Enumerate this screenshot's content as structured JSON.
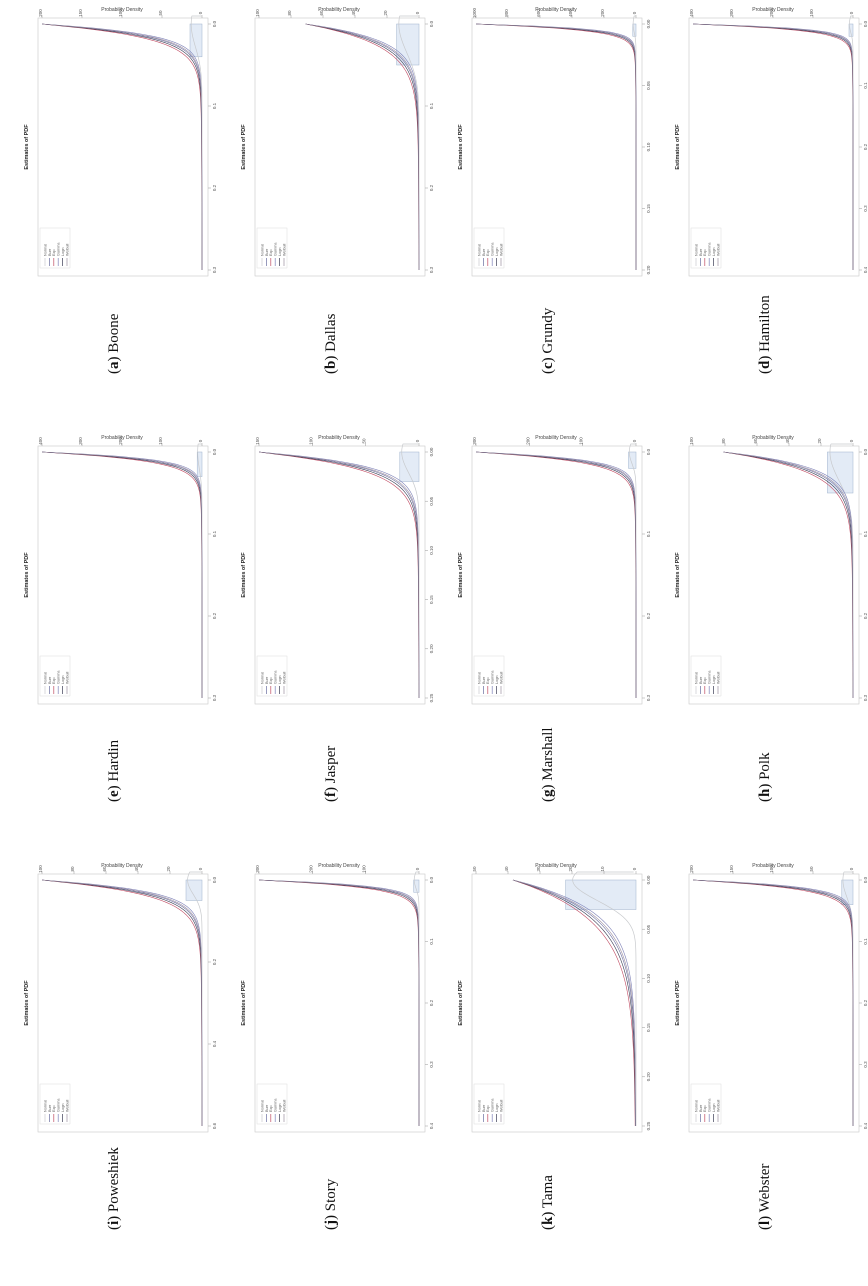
{
  "legend_labels": [
    "Normal",
    "Burr",
    "Exp",
    "Gamma",
    "Logn",
    "Weibull"
  ],
  "colors": {
    "histogram_fill": "#e3ebf6",
    "histogram_stroke": "#9fb2cc",
    "normal": "#c8cacd",
    "burr": "#6a6ea0",
    "exp": "#c04a62",
    "gamma": "#7f82b8",
    "logn": "#3a3d54",
    "weibull": "#9d8f9f"
  },
  "chart_data": [
    {
      "type": "histogram-density",
      "caption_letter": "(a)",
      "caption_name": "Boone",
      "title": "Estimates of PDF",
      "xlabel": "Lr",
      "ylabel": "Probability Density",
      "xlim": [
        0,
        0.3
      ],
      "x_ticks": [
        "0.0",
        "0.1",
        "0.2",
        "0.3"
      ],
      "ylim": [
        0,
        200
      ],
      "y_ticks": [
        "0",
        "50",
        "100",
        "150",
        "200"
      ],
      "hist_bar_width": 0.04,
      "hist_bar_height": 15,
      "curve_peak": 200,
      "decay": 0.014
    },
    {
      "type": "histogram-density",
      "caption_letter": "(b)",
      "caption_name": "Dallas",
      "title": "Estimates of PDF",
      "xlabel": "Lr",
      "ylabel": "Probability Density",
      "xlim": [
        0,
        0.3
      ],
      "x_ticks": [
        "0.0",
        "0.1",
        "0.2",
        "0.3"
      ],
      "ylim": [
        0,
        100
      ],
      "y_ticks": [
        "0",
        "20",
        "40",
        "60",
        "80",
        "100"
      ],
      "hist_bar_width": 0.05,
      "hist_bar_height": 14,
      "curve_peak": 70,
      "decay": 0.022
    },
    {
      "type": "histogram-density",
      "caption_letter": "(c)",
      "caption_name": "Grundy",
      "title": "Estimates of PDF",
      "xlabel": "Lr",
      "ylabel": "Probability Density",
      "xlim": [
        0,
        0.2
      ],
      "x_ticks": [
        "0.00",
        "0.05",
        "0.10",
        "0.15",
        "0.20"
      ],
      "ylim": [
        0,
        1000
      ],
      "y_ticks": [
        "0",
        "200",
        "400",
        "600",
        "800",
        "1000"
      ],
      "hist_bar_width": 0.01,
      "hist_bar_height": 20,
      "curve_peak": 1000,
      "decay": 0.004
    },
    {
      "type": "histogram-density",
      "caption_letter": "(d)",
      "caption_name": "Hamilton",
      "title": "Estimates of PDF",
      "xlabel": "Lr",
      "ylabel": "Probability Density",
      "xlim": [
        0,
        0.4
      ],
      "x_ticks": [
        "0.0",
        "0.1",
        "0.2",
        "0.3",
        "0.4"
      ],
      "ylim": [
        0,
        400
      ],
      "y_ticks": [
        "0",
        "100",
        "200",
        "300",
        "400"
      ],
      "hist_bar_width": 0.02,
      "hist_bar_height": 10,
      "curve_peak": 400,
      "decay": 0.008
    },
    {
      "type": "histogram-density",
      "caption_letter": "(e)",
      "caption_name": "Hardin",
      "title": "Estimates of PDF",
      "xlabel": "Lr",
      "ylabel": "Probability Density",
      "xlim": [
        0,
        0.3
      ],
      "x_ticks": [
        "0.0",
        "0.1",
        "0.2",
        "0.3"
      ],
      "ylim": [
        0,
        400
      ],
      "y_ticks": [
        "0",
        "100",
        "200",
        "300",
        "400"
      ],
      "hist_bar_width": 0.03,
      "hist_bar_height": 12,
      "curve_peak": 400,
      "decay": 0.009
    },
    {
      "type": "histogram-density",
      "caption_letter": "(f)",
      "caption_name": "Jasper",
      "title": "Estimates of PDF",
      "xlabel": "Lr",
      "ylabel": "Probability Density",
      "xlim": [
        0,
        0.25
      ],
      "x_ticks": [
        "0.00",
        "0.05",
        "0.10",
        "0.15",
        "0.20",
        "0.25"
      ],
      "ylim": [
        0,
        150
      ],
      "y_ticks": [
        "0",
        "50",
        "100",
        "150"
      ],
      "hist_bar_width": 0.03,
      "hist_bar_height": 18,
      "curve_peak": 150,
      "decay": 0.015
    },
    {
      "type": "histogram-density",
      "caption_letter": "(g)",
      "caption_name": "Marshall",
      "title": "Estimates of PDF",
      "xlabel": "Lr",
      "ylabel": "Probability Density",
      "xlim": [
        0,
        0.3
      ],
      "x_ticks": [
        "0.0",
        "0.1",
        "0.2",
        "0.3"
      ],
      "ylim": [
        0,
        300
      ],
      "y_ticks": [
        "0",
        "100",
        "200",
        "300"
      ],
      "hist_bar_width": 0.02,
      "hist_bar_height": 14,
      "curve_peak": 300,
      "decay": 0.01
    },
    {
      "type": "histogram-density",
      "caption_letter": "(h)",
      "caption_name": "Polk",
      "title": "Estimates of PDF",
      "xlabel": "Lr",
      "ylabel": "Probability Density",
      "xlim": [
        0,
        0.3
      ],
      "x_ticks": [
        "0.0",
        "0.1",
        "0.2",
        "0.3"
      ],
      "ylim": [
        0,
        100
      ],
      "y_ticks": [
        "0",
        "20",
        "40",
        "60",
        "80",
        "100"
      ],
      "hist_bar_width": 0.05,
      "hist_bar_height": 16,
      "curve_peak": 80,
      "decay": 0.02
    },
    {
      "type": "histogram-density",
      "caption_letter": "(i)",
      "caption_name": "Poweshiek",
      "title": "Estimates of PDF",
      "xlabel": "Lr",
      "ylabel": "Probability Density",
      "xlim": [
        0,
        0.6
      ],
      "x_ticks": [
        "0.0",
        "0.2",
        "0.4",
        "0.6"
      ],
      "ylim": [
        0,
        100
      ],
      "y_ticks": [
        "0",
        "20",
        "40",
        "60",
        "80",
        "100"
      ],
      "hist_bar_width": 0.05,
      "hist_bar_height": 10,
      "curve_peak": 100,
      "decay": 0.03
    },
    {
      "type": "histogram-density",
      "caption_letter": "(j)",
      "caption_name": "Story",
      "title": "Estimates of PDF",
      "xlabel": "Lr",
      "ylabel": "Probability Density",
      "xlim": [
        0,
        0.4
      ],
      "x_ticks": [
        "0.0",
        "0.1",
        "0.2",
        "0.3",
        "0.4"
      ],
      "ylim": [
        0,
        300
      ],
      "y_ticks": [
        "0",
        "100",
        "200",
        "300"
      ],
      "hist_bar_width": 0.02,
      "hist_bar_height": 10,
      "curve_peak": 300,
      "decay": 0.01
    },
    {
      "type": "histogram-density",
      "caption_letter": "(k)",
      "caption_name": "Tama",
      "title": "Estimates of PDF",
      "xlabel": "Lr",
      "ylabel": "Probability Density",
      "xlim": [
        0,
        0.25
      ],
      "x_ticks": [
        "0.00",
        "0.05",
        "0.10",
        "0.15",
        "0.20",
        "0.25"
      ],
      "ylim": [
        0,
        50
      ],
      "y_ticks": [
        "0",
        "10",
        "20",
        "30",
        "40",
        "50"
      ],
      "hist_bar_width": 0.03,
      "hist_bar_height": 22,
      "curve_peak": 38,
      "decay": 0.035
    },
    {
      "type": "histogram-density",
      "caption_letter": "(l)",
      "caption_name": "Webster",
      "title": "Estimates of PDF",
      "xlabel": "Lr",
      "ylabel": "Probability Density",
      "xlim": [
        0,
        0.4
      ],
      "x_ticks": [
        "0.0",
        "0.1",
        "0.2",
        "0.3",
        "0.4"
      ],
      "ylim": [
        0,
        200
      ],
      "y_ticks": [
        "0",
        "50",
        "100",
        "150",
        "200"
      ],
      "hist_bar_width": 0.04,
      "hist_bar_height": 14,
      "curve_peak": 200,
      "decay": 0.012
    }
  ]
}
